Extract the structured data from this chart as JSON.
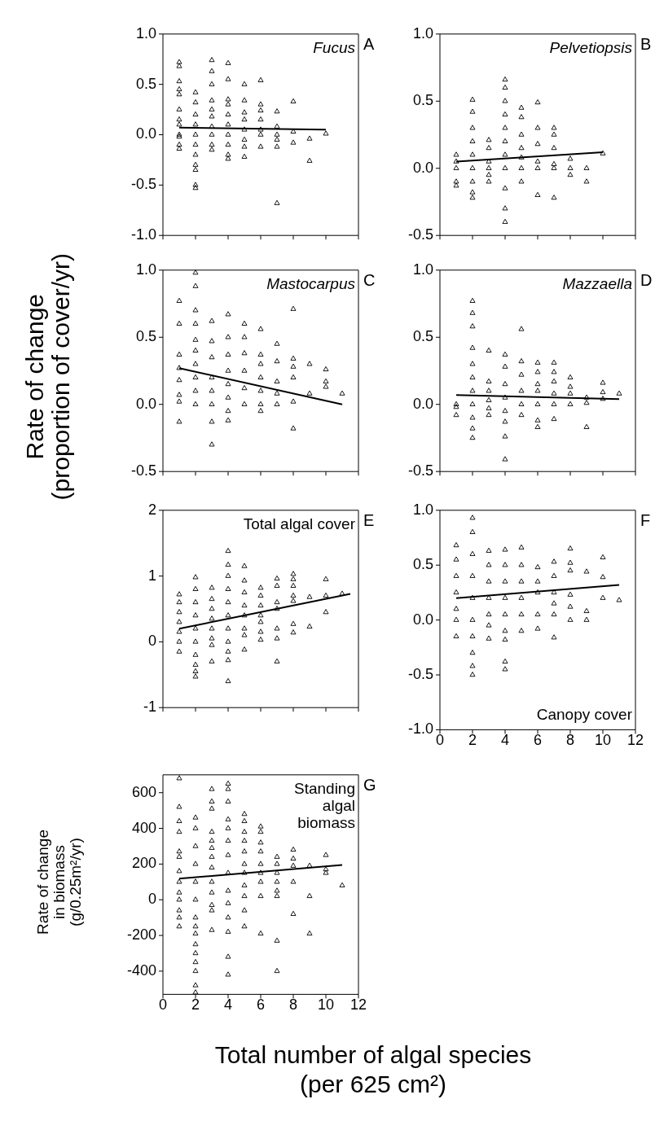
{
  "chart_data": [
    {
      "type": "scatter",
      "title": "Fucus",
      "ylabel": "Rate of change\n(proportion of cover/yr)",
      "annotations": [
        "A"
      ],
      "xlim": [
        0,
        12
      ],
      "xticks": [
        0,
        2,
        4,
        6,
        8,
        10,
        12
      ],
      "ylim": [
        -1,
        1
      ],
      "yticks": [
        {
          "value": -1,
          "label": "-1.0"
        },
        {
          "value": -0.5,
          "label": "-0.5"
        },
        {
          "value": 0,
          "label": "0.0"
        },
        {
          "value": 0.5,
          "label": "0.5"
        },
        {
          "value": 1,
          "label": "1.0"
        }
      ],
      "tick_labels": "y",
      "marker": "triangle",
      "series": [
        {
          "type": "scatter",
          "color": "#000000",
          "x": [
            1,
            1,
            1,
            1,
            1,
            1,
            1,
            1,
            1,
            1,
            1,
            1,
            2,
            2,
            2,
            2,
            2,
            2,
            2,
            2,
            2,
            2,
            2,
            3,
            3,
            3,
            3,
            3,
            3,
            3,
            3,
            3,
            3,
            4,
            4,
            4,
            4,
            4,
            4,
            4,
            4,
            4,
            4,
            5,
            5,
            5,
            5,
            5,
            5,
            5,
            5,
            6,
            6,
            6,
            6,
            6,
            6,
            6,
            7,
            7,
            7,
            7,
            7,
            7,
            8,
            8,
            8,
            9,
            9,
            10
          ],
          "values": [
            0.72,
            0.68,
            0.53,
            0.45,
            0.4,
            0.25,
            0.15,
            0.1,
            0,
            -0.02,
            -0.1,
            -0.14,
            0.42,
            0.32,
            0.2,
            0.1,
            0,
            -0.1,
            -0.2,
            -0.3,
            -0.35,
            -0.5,
            -0.53,
            0.74,
            0.63,
            0.5,
            0.34,
            0.25,
            0.18,
            0.08,
            0,
            -0.1,
            -0.15,
            0.71,
            0.55,
            0.35,
            0.3,
            0.2,
            0.1,
            0,
            -0.1,
            -0.2,
            -0.24,
            0.5,
            0.34,
            0.22,
            0.15,
            0.05,
            -0.05,
            -0.12,
            -0.22,
            0.54,
            0.3,
            0.24,
            0.15,
            0.05,
            0,
            -0.12,
            0.23,
            0.08,
            0,
            -0.05,
            -0.12,
            -0.68,
            0.33,
            0.03,
            -0.08,
            -0.04,
            -0.26,
            0.01
          ]
        },
        {
          "type": "line",
          "marker": "none",
          "color": "#000000",
          "x": [
            1,
            10
          ],
          "values": [
            0.07,
            0.05
          ]
        }
      ]
    },
    {
      "type": "scatter",
      "title": "Pelvetiopsis",
      "annotations": [
        "B"
      ],
      "xlim": [
        0,
        12
      ],
      "xticks": [
        0,
        2,
        4,
        6,
        8,
        10,
        12
      ],
      "ylim": [
        -0.5,
        1
      ],
      "yticks": [
        {
          "value": -0.5,
          "label": "-0.5"
        },
        {
          "value": 0,
          "label": "0.0"
        },
        {
          "value": 0.5,
          "label": "0.5"
        },
        {
          "value": 1,
          "label": "1.0"
        }
      ],
      "tick_labels": "y",
      "marker": "triangle",
      "series": [
        {
          "type": "scatter",
          "color": "#000000",
          "x": [
            1,
            1,
            1,
            1,
            1,
            2,
            2,
            2,
            2,
            2,
            2,
            2,
            2,
            2,
            3,
            3,
            3,
            3,
            3,
            3,
            4,
            4,
            4,
            4,
            4,
            4,
            4,
            4,
            4,
            4,
            4,
            5,
            5,
            5,
            5,
            5,
            5,
            5,
            6,
            6,
            6,
            6,
            6,
            6,
            7,
            7,
            7,
            7,
            7,
            7,
            8,
            8,
            8,
            9,
            9,
            10
          ],
          "values": [
            0.1,
            0.05,
            0,
            -0.1,
            -0.13,
            0.51,
            0.42,
            0.3,
            0.2,
            0.1,
            0,
            -0.1,
            -0.18,
            -0.22,
            0.21,
            0.15,
            0.05,
            0,
            -0.05,
            -0.1,
            0.66,
            0.6,
            0.5,
            0.4,
            0.3,
            0.2,
            0.1,
            0,
            -0.15,
            -0.3,
            -0.4,
            0.45,
            0.38,
            0.25,
            0.15,
            0.08,
            0,
            -0.1,
            0.49,
            0.3,
            0.18,
            0.05,
            0,
            -0.2,
            0.3,
            0.25,
            0.15,
            0.03,
            0,
            -0.22,
            0.07,
            0,
            -0.05,
            0,
            -0.1,
            0.11
          ]
        },
        {
          "type": "line",
          "marker": "none",
          "color": "#000000",
          "x": [
            1,
            10
          ],
          "values": [
            0.05,
            0.12
          ]
        }
      ]
    },
    {
      "type": "scatter",
      "title": "Mastocarpus",
      "annotations": [
        "C"
      ],
      "xlim": [
        0,
        12
      ],
      "xticks": [
        0,
        2,
        4,
        6,
        8,
        10,
        12
      ],
      "ylim": [
        -0.5,
        1
      ],
      "yticks": [
        {
          "value": -0.5,
          "label": "-0.5"
        },
        {
          "value": 0,
          "label": "0.0"
        },
        {
          "value": 0.5,
          "label": "0.5"
        },
        {
          "value": 1,
          "label": "1.0"
        }
      ],
      "tick_labels": "y",
      "marker": "triangle",
      "series": [
        {
          "type": "scatter",
          "color": "#000000",
          "x": [
            1,
            1,
            1,
            1,
            1,
            1,
            1,
            1,
            2,
            2,
            2,
            2,
            2,
            2,
            2,
            2,
            2,
            2,
            3,
            3,
            3,
            3,
            3,
            3,
            3,
            3,
            4,
            4,
            4,
            4,
            4,
            4,
            4,
            4,
            5,
            5,
            5,
            5,
            5,
            5,
            6,
            6,
            6,
            6,
            6,
            6,
            6,
            7,
            7,
            7,
            7,
            7,
            8,
            8,
            8,
            8,
            8,
            8,
            9,
            9,
            10,
            10,
            10,
            11
          ],
          "values": [
            0.77,
            0.6,
            0.37,
            0.27,
            0.18,
            0.07,
            0.02,
            -0.13,
            0.98,
            0.88,
            0.7,
            0.6,
            0.48,
            0.4,
            0.3,
            0.2,
            0.1,
            0,
            0.62,
            0.47,
            0.35,
            0.2,
            0.1,
            0,
            -0.13,
            -0.3,
            0.67,
            0.5,
            0.37,
            0.25,
            0.15,
            0.05,
            -0.05,
            -0.12,
            0.6,
            0.5,
            0.38,
            0.25,
            0.12,
            0,
            0.56,
            0.37,
            0.3,
            0.2,
            0.1,
            0,
            -0.05,
            0.45,
            0.32,
            0.17,
            0.08,
            0,
            0.71,
            0.34,
            0.28,
            0.2,
            0.02,
            -0.18,
            0.3,
            0.08,
            0.26,
            0.17,
            0.13,
            0.08
          ]
        },
        {
          "type": "line",
          "marker": "none",
          "color": "#000000",
          "x": [
            1,
            11
          ],
          "values": [
            0.27,
            0
          ]
        }
      ]
    },
    {
      "type": "scatter",
      "title": "Mazzaella",
      "annotations": [
        "D"
      ],
      "xlim": [
        0,
        12
      ],
      "xticks": [
        0,
        2,
        4,
        6,
        8,
        10,
        12
      ],
      "ylim": [
        -0.5,
        1
      ],
      "yticks": [
        {
          "value": -0.5,
          "label": "-0.5"
        },
        {
          "value": 0,
          "label": "0.0"
        },
        {
          "value": 0.5,
          "label": "0.5"
        },
        {
          "value": 1,
          "label": "1.0"
        }
      ],
      "tick_labels": "y",
      "marker": "triangle",
      "series": [
        {
          "type": "scatter",
          "color": "#000000",
          "x": [
            1,
            1,
            1,
            2,
            2,
            2,
            2,
            2,
            2,
            2,
            2,
            2,
            2,
            2,
            3,
            3,
            3,
            3,
            3,
            3,
            4,
            4,
            4,
            4,
            4,
            4,
            4,
            4,
            5,
            5,
            5,
            5,
            5,
            5,
            6,
            6,
            6,
            6,
            6,
            6,
            6,
            7,
            7,
            7,
            7,
            7,
            7,
            8,
            8,
            8,
            8,
            9,
            9,
            9,
            10,
            10,
            10,
            11
          ],
          "values": [
            0,
            -0.02,
            -0.08,
            0.77,
            0.68,
            0.58,
            0.42,
            0.3,
            0.2,
            0.1,
            0,
            -0.1,
            -0.18,
            -0.25,
            0.4,
            0.17,
            0.1,
            0.03,
            -0.03,
            -0.08,
            0.37,
            0.28,
            0.15,
            0.05,
            -0.05,
            -0.13,
            -0.24,
            -0.41,
            0.56,
            0.32,
            0.22,
            0.1,
            0,
            -0.08,
            0.31,
            0.24,
            0.15,
            0.1,
            0,
            -0.12,
            -0.17,
            0.31,
            0.24,
            0.17,
            0.08,
            0,
            -0.11,
            0.2,
            0.13,
            0.08,
            0,
            0.05,
            0.01,
            -0.17,
            0.16,
            0.09,
            0.04,
            0.08
          ]
        },
        {
          "type": "line",
          "marker": "none",
          "color": "#000000",
          "x": [
            1,
            11
          ],
          "values": [
            0.07,
            0.04
          ]
        }
      ]
    },
    {
      "type": "scatter",
      "title": "Total algal cover",
      "annotations": [
        "E"
      ],
      "xlim": [
        0,
        12
      ],
      "xticks": [
        0,
        2,
        4,
        6,
        8,
        10,
        12
      ],
      "ylim": [
        -1,
        2
      ],
      "yticks": [
        -1,
        0,
        1,
        2
      ],
      "tick_labels": "y",
      "marker": "triangle",
      "series": [
        {
          "type": "scatter",
          "color": "#000000",
          "x": [
            1,
            1,
            1,
            1,
            1,
            1,
            1,
            2,
            2,
            2,
            2,
            2,
            2,
            2,
            2,
            2,
            2,
            3,
            3,
            3,
            3,
            3,
            3,
            3,
            3,
            4,
            4,
            4,
            4,
            4,
            4,
            4,
            4,
            4,
            4,
            4,
            5,
            5,
            5,
            5,
            5,
            5,
            5,
            5,
            6,
            6,
            6,
            6,
            6,
            6,
            6,
            7,
            7,
            7,
            7,
            7,
            7,
            7,
            8,
            8,
            8,
            8,
            8,
            8,
            8,
            9,
            9,
            10,
            10,
            10,
            11
          ],
          "values": [
            0.72,
            0.6,
            0.45,
            0.3,
            0.15,
            0,
            -0.15,
            0.98,
            0.8,
            0.6,
            0.4,
            0.2,
            0,
            -0.2,
            -0.35,
            -0.45,
            -0.53,
            0.82,
            0.65,
            0.5,
            0.35,
            0.2,
            0.05,
            -0.05,
            -0.3,
            1.38,
            1.17,
            1,
            0.8,
            0.6,
            0.4,
            0.2,
            0,
            -0.15,
            -0.28,
            -0.6,
            1.15,
            0.93,
            0.75,
            0.55,
            0.4,
            0.2,
            0.1,
            -0.12,
            0.82,
            0.7,
            0.55,
            0.4,
            0.3,
            0.15,
            0.03,
            0.96,
            0.85,
            0.6,
            0.5,
            0.2,
            0.05,
            -0.3,
            1.03,
            0.95,
            0.85,
            0.7,
            0.62,
            0.27,
            0.14,
            0.68,
            0.23,
            0.95,
            0.7,
            0.45,
            0.73
          ]
        },
        {
          "type": "line",
          "marker": "none",
          "color": "#000000",
          "x": [
            1,
            11.5
          ],
          "values": [
            0.2,
            0.73
          ]
        }
      ]
    },
    {
      "type": "scatter",
      "title": "Canopy cover",
      "annotations": [
        "F"
      ],
      "xlim": [
        0,
        12
      ],
      "xticks": [
        0,
        2,
        4,
        6,
        8,
        10,
        12
      ],
      "ylim": [
        -1,
        1
      ],
      "yticks": [
        {
          "value": -1,
          "label": "-1.0"
        },
        {
          "value": -0.5,
          "label": "-0.5"
        },
        {
          "value": 0,
          "label": "0.0"
        },
        {
          "value": 0.5,
          "label": "0.5"
        },
        {
          "value": 1,
          "label": "1.0"
        }
      ],
      "marker": "triangle",
      "series": [
        {
          "type": "scatter",
          "color": "#000000",
          "x": [
            1,
            1,
            1,
            1,
            1,
            1,
            1,
            2,
            2,
            2,
            2,
            2,
            2,
            2,
            2,
            2,
            2,
            3,
            3,
            3,
            3,
            3,
            3,
            3,
            4,
            4,
            4,
            4,
            4,
            4,
            4,
            4,
            4,
            5,
            5,
            5,
            5,
            5,
            5,
            6,
            6,
            6,
            6,
            6,
            7,
            7,
            7,
            7,
            7,
            7,
            8,
            8,
            8,
            8,
            8,
            8,
            9,
            9,
            9,
            10,
            10,
            10,
            11
          ],
          "values": [
            0.68,
            0.55,
            0.4,
            0.25,
            0.1,
            0,
            -0.15,
            0.93,
            0.8,
            0.6,
            0.4,
            0.2,
            0,
            -0.15,
            -0.3,
            -0.42,
            -0.5,
            0.63,
            0.5,
            0.35,
            0.2,
            0.05,
            -0.05,
            -0.17,
            0.64,
            0.5,
            0.35,
            0.2,
            0.05,
            -0.1,
            -0.18,
            -0.38,
            -0.45,
            0.66,
            0.5,
            0.35,
            0.2,
            0.05,
            -0.1,
            0.48,
            0.35,
            0.25,
            0.05,
            -0.08,
            0.53,
            0.4,
            0.25,
            0.15,
            0.05,
            -0.16,
            0.65,
            0.52,
            0.45,
            0.23,
            0.12,
            0,
            0.44,
            0.08,
            0,
            0.57,
            0.39,
            0.2,
            0.18
          ]
        },
        {
          "type": "line",
          "marker": "none",
          "color": "#000000",
          "x": [
            1,
            11
          ],
          "values": [
            0.2,
            0.32
          ]
        }
      ]
    },
    {
      "type": "scatter",
      "title": "Standing\nalgal\nbiomass",
      "ylabel": "Rate of change\nin biomass\n(g/0.25m²/yr)",
      "xlabel": "Total number of algal species\n(per 625 cm²)",
      "annotations": [
        "G"
      ],
      "xlim": [
        0,
        12
      ],
      "xticks": [
        0,
        2,
        4,
        6,
        8,
        10,
        12
      ],
      "ylim": [
        -530,
        700
      ],
      "yticks": [
        -400,
        -200,
        0,
        200,
        400,
        600
      ],
      "marker": "triangle",
      "series": [
        {
          "type": "scatter",
          "color": "#000000",
          "x": [
            1,
            1,
            1,
            1,
            1,
            1,
            1,
            1,
            1,
            1,
            1,
            1,
            1,
            2,
            2,
            2,
            2,
            2,
            2,
            2,
            2,
            2,
            2,
            2,
            2,
            2,
            2,
            2,
            3,
            3,
            3,
            3,
            3,
            3,
            3,
            3,
            3,
            3,
            3,
            3,
            3,
            4,
            4,
            4,
            4,
            4,
            4,
            4,
            4,
            4,
            4,
            4,
            4,
            4,
            4,
            5,
            5,
            5,
            5,
            5,
            5,
            5,
            5,
            5,
            5,
            5,
            6,
            6,
            6,
            6,
            6,
            6,
            6,
            6,
            6,
            7,
            7,
            7,
            7,
            7,
            7,
            7,
            7,
            8,
            8,
            8,
            8,
            8,
            9,
            9,
            9,
            10,
            10,
            10,
            11
          ],
          "values": [
            680,
            520,
            440,
            380,
            270,
            240,
            160,
            100,
            40,
            0,
            -60,
            -100,
            -150,
            460,
            400,
            300,
            200,
            100,
            0,
            -100,
            -150,
            -190,
            -250,
            -300,
            -350,
            -400,
            -480,
            -520,
            620,
            550,
            510,
            380,
            330,
            290,
            240,
            180,
            100,
            40,
            -30,
            -60,
            -170,
            650,
            620,
            550,
            450,
            400,
            330,
            250,
            150,
            50,
            -20,
            -100,
            -180,
            -320,
            -420,
            480,
            440,
            380,
            330,
            270,
            200,
            150,
            80,
            20,
            -60,
            -150,
            410,
            380,
            320,
            270,
            200,
            150,
            100,
            20,
            -190,
            240,
            200,
            150,
            100,
            50,
            20,
            -230,
            -400,
            280,
            230,
            190,
            100,
            -80,
            190,
            20,
            -190,
            250,
            170,
            150,
            80
          ]
        },
        {
          "type": "line",
          "marker": "none",
          "color": "#000000",
          "x": [
            1,
            11
          ],
          "values": [
            118,
            195
          ]
        }
      ]
    }
  ]
}
